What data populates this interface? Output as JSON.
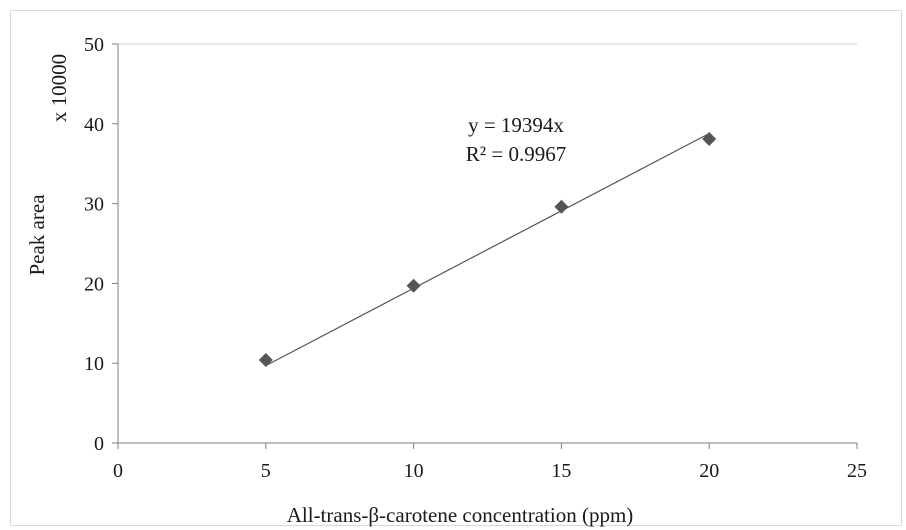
{
  "chart_data": {
    "type": "scatter",
    "x": [
      5,
      10,
      15,
      20
    ],
    "y": [
      10.4,
      19.7,
      29.6,
      38.1
    ],
    "xlabel": "All-trans-β-carotene concentration (ppm)",
    "ylabel": "Peak area",
    "y_multiplier_label": "x 10000",
    "xlim": [
      0,
      25
    ],
    "ylim": [
      0,
      50
    ],
    "x_ticks": [
      "0",
      "5",
      "10",
      "15",
      "20",
      "25"
    ],
    "y_ticks": [
      "0",
      "10",
      "20",
      "30",
      "40",
      "50"
    ],
    "trendline": {
      "type": "linear",
      "slope": 1.9394,
      "intercept": 0,
      "equation": "y = 19394x",
      "r_squared": "R² = 0.9967"
    },
    "grid": false,
    "colors": {
      "marker": "#555555",
      "line": "#555555",
      "axis": "#7f7f7f"
    }
  }
}
